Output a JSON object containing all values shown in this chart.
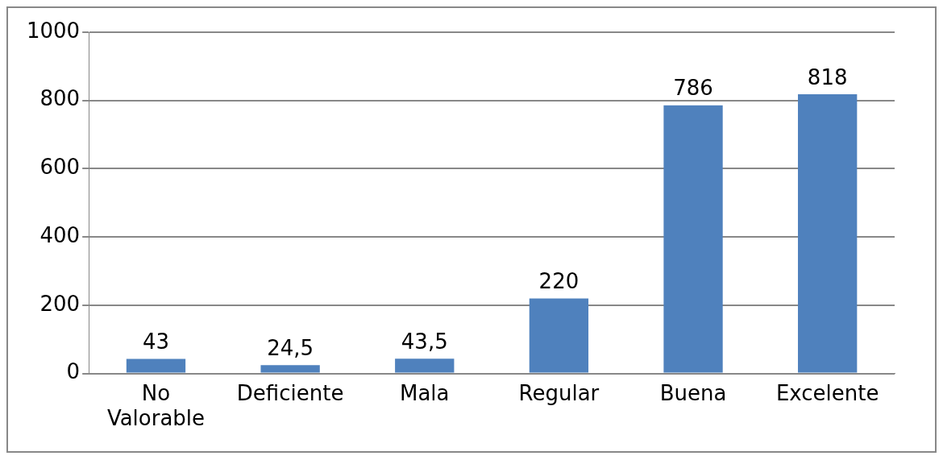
{
  "chart_data": {
    "type": "bar",
    "categories": [
      "No Valorable",
      "Deficiente",
      "Mala",
      "Regular",
      "Buena",
      "Excelente"
    ],
    "values": [
      43,
      24.5,
      43.5,
      220,
      786,
      818
    ],
    "value_labels": [
      "43",
      "24,5",
      "43,5",
      "220",
      "786",
      "818"
    ],
    "color": "#4f81bd",
    "ylim": [
      0,
      1000
    ],
    "yticks": [
      0,
      200,
      400,
      600,
      800,
      1000
    ],
    "grid": "y",
    "legend": false
  }
}
